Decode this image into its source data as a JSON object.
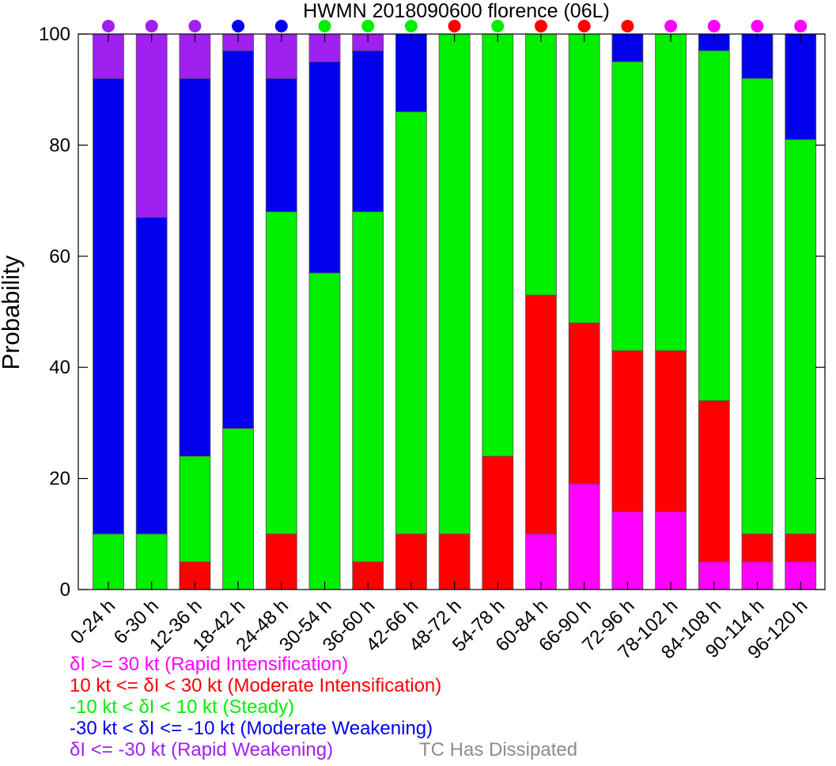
{
  "chart_data": {
    "type": "bar",
    "stacked": true,
    "title": "HWMN 2018090600 florence (06L)",
    "xlabel": "",
    "ylabel": "Probability",
    "ylim": [
      0,
      100
    ],
    "yticks": [
      0,
      20,
      40,
      60,
      80,
      100
    ],
    "grid": false,
    "categories": [
      "0-24 h",
      "6-30 h",
      "12-36 h",
      "18-42 h",
      "24-48 h",
      "30-54 h",
      "36-60 h",
      "42-66 h",
      "48-72 h",
      "54-78 h",
      "60-84 h",
      "66-90 h",
      "72-96 h",
      "78-102 h",
      "84-108 h",
      "90-114 h",
      "96-120 h"
    ],
    "series": [
      {
        "name": "δI >= 30 kt (Rapid Intensification)",
        "color": "#ff00ff",
        "values": [
          0,
          0,
          0,
          0,
          0,
          0,
          0,
          0,
          0,
          0,
          10,
          19,
          14,
          14,
          5,
          5,
          5
        ]
      },
      {
        "name": "10 kt <= δI < 30 kt (Moderate Intensification)",
        "color": "#ff0000",
        "values": [
          0,
          0,
          5,
          0,
          10,
          0,
          5,
          10,
          10,
          24,
          43,
          29,
          29,
          29,
          29,
          5,
          5
        ]
      },
      {
        "name": "-10 kt < δI < 10 kt (Steady)",
        "color": "#00ee00",
        "values": [
          10,
          10,
          19,
          29,
          58,
          57,
          63,
          76,
          90,
          76,
          47,
          52,
          52,
          57,
          63,
          82,
          71
        ]
      },
      {
        "name": "-30 kt < δI <= -10 kt (Moderate Weakening)",
        "color": "#0000ee",
        "values": [
          82,
          57,
          68,
          68,
          24,
          38,
          29,
          14,
          0,
          0,
          0,
          0,
          5,
          0,
          3,
          8,
          19
        ]
      },
      {
        "name": "δI <= -30 kt (Rapid Weakening)",
        "color": "#a020f0",
        "values": [
          8,
          33,
          8,
          3,
          8,
          5,
          3,
          0,
          0,
          0,
          0,
          0,
          0,
          0,
          0,
          0,
          0
        ]
      }
    ],
    "top_markers": [
      "#a020f0",
      "#a020f0",
      "#a020f0",
      "#0000ee",
      "#0000ee",
      "#00ee00",
      "#00ee00",
      "#00ee00",
      "#ff0000",
      "#00ee00",
      "#ff0000",
      "#ff0000",
      "#ff0000",
      "#ff00ff",
      "#ff00ff",
      "#ff00ff",
      "#ff00ff"
    ],
    "legend_placement": "bottom-left",
    "dissipated_label": "TC Has Dissipated",
    "dissipated_color": "#8c8c8c"
  }
}
